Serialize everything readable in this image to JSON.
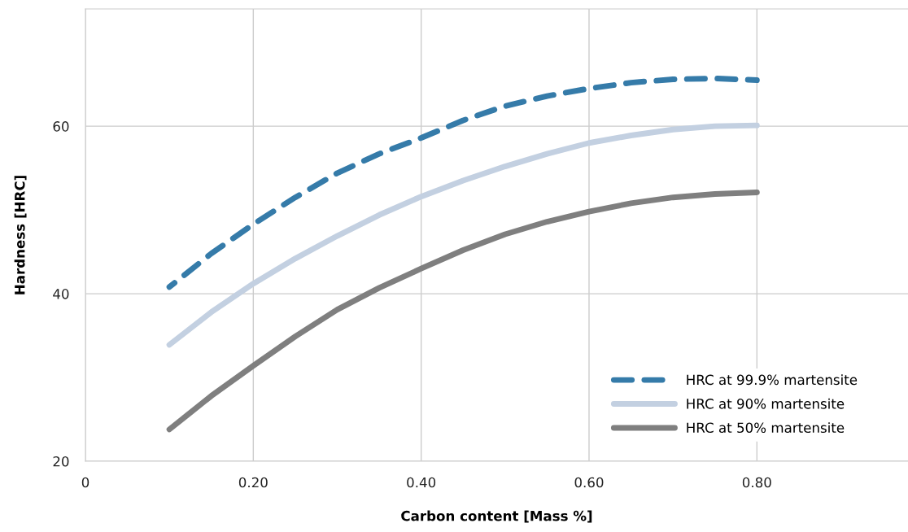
{
  "chart_data": {
    "type": "line",
    "xlabel": "Carbon content [Mass %]",
    "ylabel": "Hardness [HRC]",
    "x": [
      0.1,
      0.15,
      0.2,
      0.25,
      0.3,
      0.35,
      0.4,
      0.45,
      0.5,
      0.55,
      0.6,
      0.65,
      0.7,
      0.75,
      0.8
    ],
    "series": [
      {
        "name": "HRC at 99.9% martensite",
        "color": "#357ba9",
        "line_style": "dashed",
        "values": [
          40.8,
          44.8,
          48.3,
          51.5,
          54.4,
          56.7,
          58.6,
          60.7,
          62.4,
          63.6,
          64.5,
          65.2,
          65.6,
          65.7,
          65.5
        ]
      },
      {
        "name": "HRC at 90% martensite",
        "color": "#c3d0e1",
        "line_style": "solid",
        "values": [
          33.9,
          37.8,
          41.2,
          44.2,
          46.9,
          49.4,
          51.6,
          53.5,
          55.2,
          56.7,
          58.0,
          58.9,
          59.6,
          60.0,
          60.1
        ]
      },
      {
        "name": "HRC at 50% martensite",
        "color": "#7f7f7f",
        "line_style": "solid",
        "values": [
          23.8,
          27.8,
          31.4,
          34.9,
          38.1,
          40.7,
          43.0,
          45.2,
          47.1,
          48.6,
          49.8,
          50.8,
          51.5,
          51.9,
          52.1
        ]
      }
    ],
    "xlim": [
      0,
      0.98
    ],
    "ylim": [
      20,
      74
    ],
    "xticks": [
      0,
      {
        "value": 0.2,
        "label": "0.20"
      },
      {
        "value": 0.4,
        "label": "0.40"
      },
      {
        "value": 0.6,
        "label": "0.60"
      },
      {
        "value": 0.8,
        "label": "0.80"
      }
    ],
    "yticks": [
      20,
      40,
      60
    ],
    "grid": true,
    "legend": "bottom right",
    "marker": "none"
  }
}
